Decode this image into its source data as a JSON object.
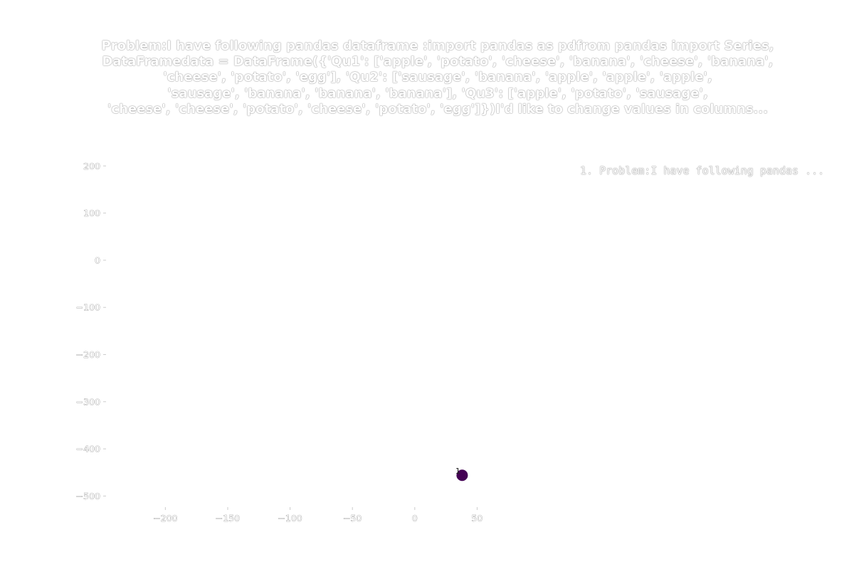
{
  "chart_data": {
    "type": "scatter",
    "title": "Problem:I have following pandas dataframe :import pandas as pdfrom pandas import Series,\nDataFramedata = DataFrame({'Qu1': ['apple', 'potato', 'cheese', 'banana', 'cheese', 'banana',\n'cheese', 'potato', 'egg'],              'Qu2': ['sausage', 'banana', 'apple', 'apple', 'apple',\n'sausage', 'banana', 'banana', 'banana'],              'Qu3': ['apple', 'potato', 'sausage',\n'cheese', 'cheese', 'potato', 'cheese', 'potato', 'egg']})I'd like to change values in columns...",
    "xlabel": "",
    "ylabel": "",
    "xlim": [
      -247,
      76
    ],
    "ylim": [
      -522,
      220
    ],
    "xticks": [
      -200,
      -150,
      -100,
      -50,
      0,
      50
    ],
    "xtick_labels": [
      "−200",
      "−150",
      "−100",
      "−50",
      "0",
      "50"
    ],
    "yticks": [
      200,
      100,
      0,
      -100,
      -200,
      -300,
      -400,
      -500
    ],
    "ytick_labels": [
      "200",
      "100",
      "0",
      "−100",
      "−200",
      "−300",
      "−400",
      "−500"
    ],
    "grid": false,
    "legend_position": "top-right",
    "legend_entries": [
      "1. Problem:I have following pandas ..."
    ],
    "points": [
      {
        "x": 38,
        "y": -456,
        "label": "1",
        "color": "#440154"
      }
    ]
  }
}
